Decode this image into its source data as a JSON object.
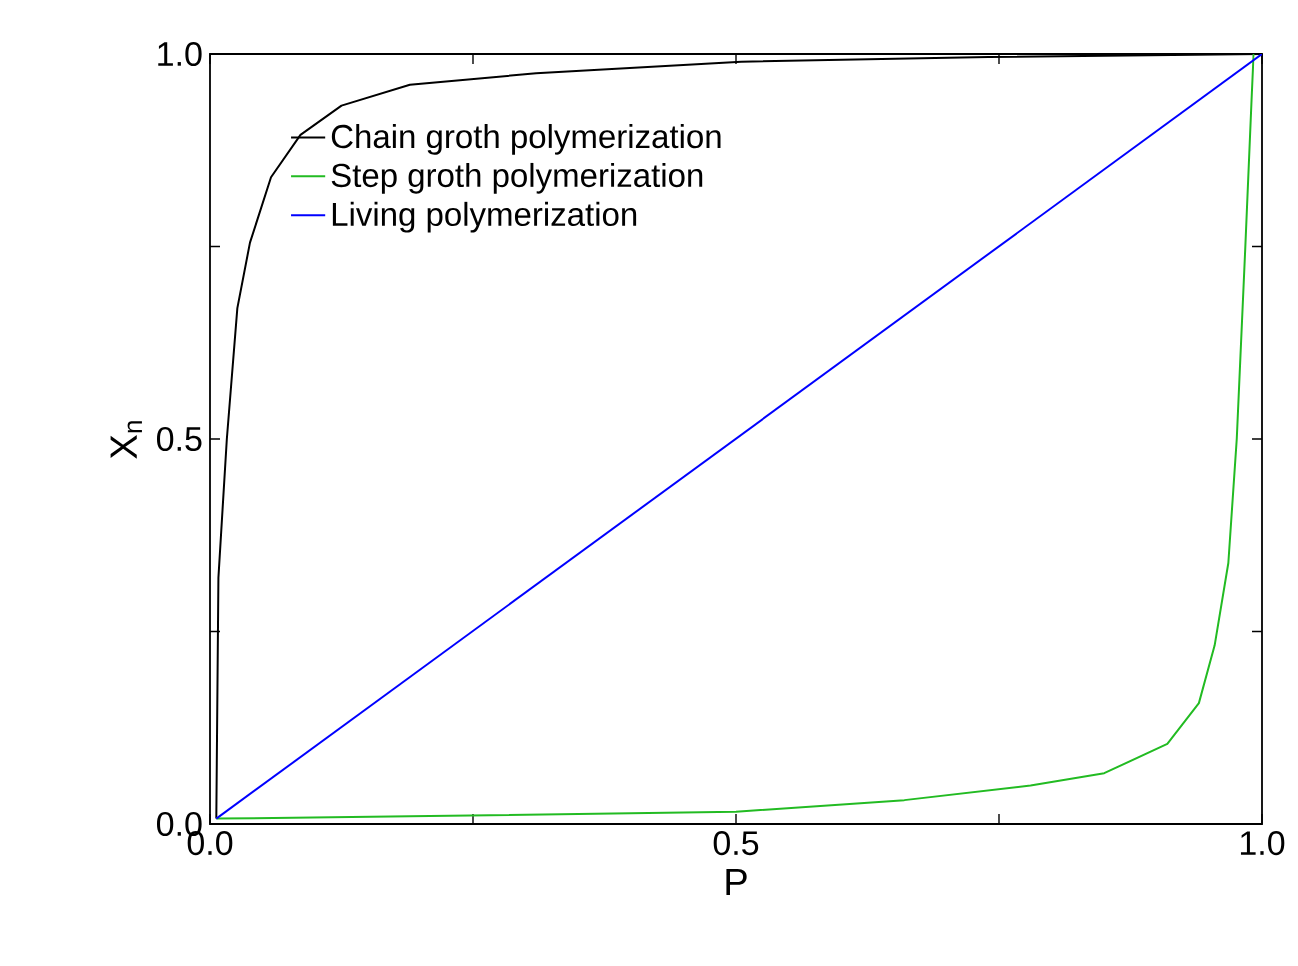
{
  "chart_data": {
    "type": "line",
    "xlabel": "P",
    "ylabel": "X$_{n}$",
    "xlim": [
      0,
      1
    ],
    "ylim": [
      0,
      1
    ],
    "xticks": [
      {
        "value": 0,
        "label": "0.0"
      },
      {
        "value": 0.25,
        "label": null
      },
      {
        "value": 0.5,
        "label": "0.5"
      },
      {
        "value": 0.75,
        "label": null
      },
      {
        "value": 1,
        "label": "1.0"
      }
    ],
    "yticks": [
      {
        "value": 0,
        "label": "0.0"
      },
      {
        "value": 0.25,
        "label": null
      },
      {
        "value": 0.5,
        "label": "0.5"
      },
      {
        "value": 0.75,
        "label": null
      },
      {
        "value": 1,
        "label": "1.0"
      }
    ],
    "grid": false,
    "legend": "top left",
    "marker": "none",
    "line_style": "solid",
    "series": [
      {
        "name": "Chain groth polymerization",
        "color": "#000000",
        "x": [
          0.006,
          0.008,
          0.016,
          0.026,
          0.038,
          0.058,
          0.086,
          0.125,
          0.19,
          0.31,
          0.505,
          0.74,
          1.0
        ],
        "values": [
          0.007,
          0.32,
          0.5,
          0.67,
          0.755,
          0.84,
          0.895,
          0.933,
          0.96,
          0.975,
          0.99,
          0.996,
          1.0
        ]
      },
      {
        "name": "Step groth polymerization",
        "color": "#22bb22",
        "x": [
          0.006,
          0.19,
          0.5,
          0.66,
          0.78,
          0.85,
          0.91,
          0.94,
          0.955,
          0.968,
          0.976,
          0.984,
          0.99,
          0.992
        ],
        "values": [
          0.007,
          0.01,
          0.016,
          0.031,
          0.05,
          0.066,
          0.104,
          0.157,
          0.232,
          0.339,
          0.5,
          0.745,
          0.938,
          1.0
        ]
      },
      {
        "name": "Living polymerization",
        "color": "#0000ff",
        "x": [
          0.006,
          1.0
        ],
        "values": [
          0.007,
          1.0
        ]
      }
    ]
  }
}
